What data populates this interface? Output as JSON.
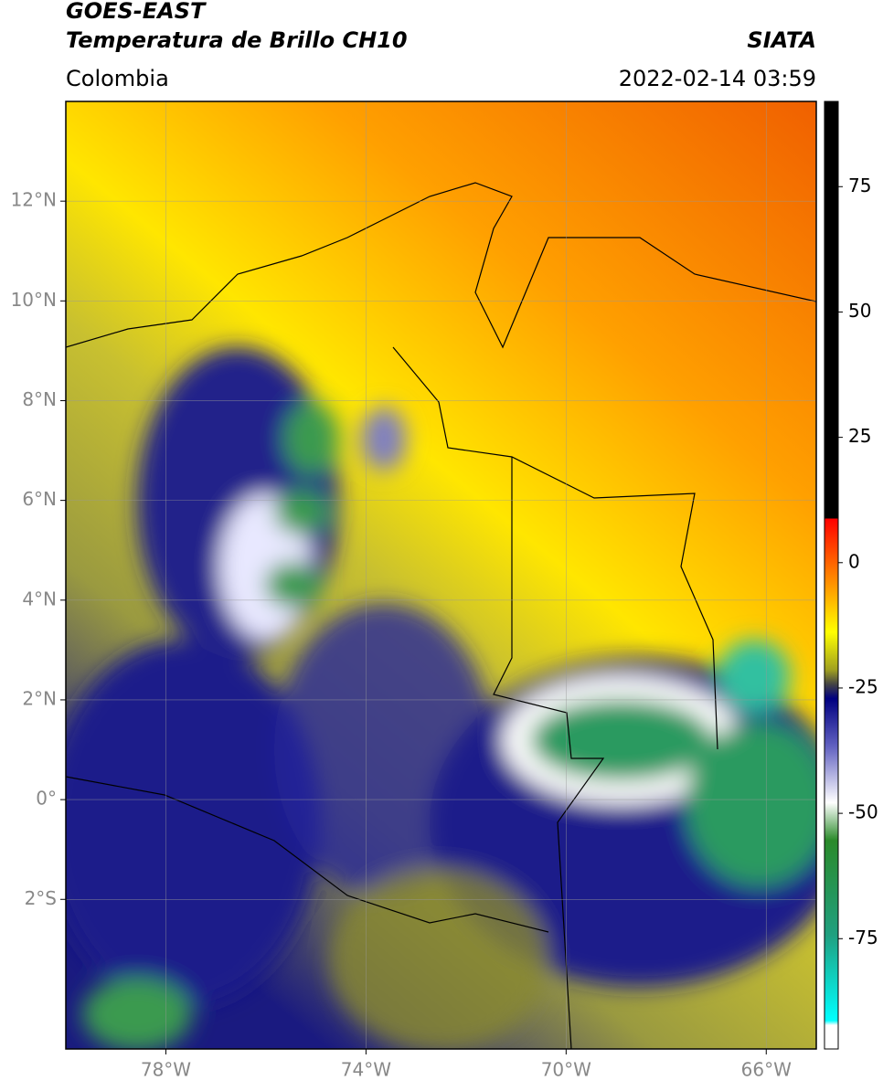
{
  "header": {
    "title": "GOES-EAST",
    "subtitle": "Temperatura de Brillo CH10",
    "brand": "SIATA",
    "region": "Colombia",
    "timestamp": "2022-02-14 03:59"
  },
  "map": {
    "xlim": [
      -80,
      -65
    ],
    "ylim": [
      -5,
      14
    ],
    "xticks": [
      {
        "value": -78,
        "label": "78°W"
      },
      {
        "value": -74,
        "label": "74°W"
      },
      {
        "value": -70,
        "label": "70°W"
      },
      {
        "value": -66,
        "label": "66°W"
      }
    ],
    "yticks": [
      {
        "value": 12,
        "label": "12°N"
      },
      {
        "value": 10,
        "label": "10°N"
      },
      {
        "value": 8,
        "label": "8°N"
      },
      {
        "value": 6,
        "label": "6°N"
      },
      {
        "value": 4,
        "label": "4°N"
      },
      {
        "value": 2,
        "label": "2°N"
      },
      {
        "value": 0,
        "label": "0°"
      },
      {
        "value": -2,
        "label": "2°S"
      }
    ],
    "grid": true
  },
  "colorbar": {
    "lim": [
      -97,
      92
    ],
    "ticks": [
      75,
      50,
      25,
      0,
      -25,
      -50,
      -75
    ]
  }
}
